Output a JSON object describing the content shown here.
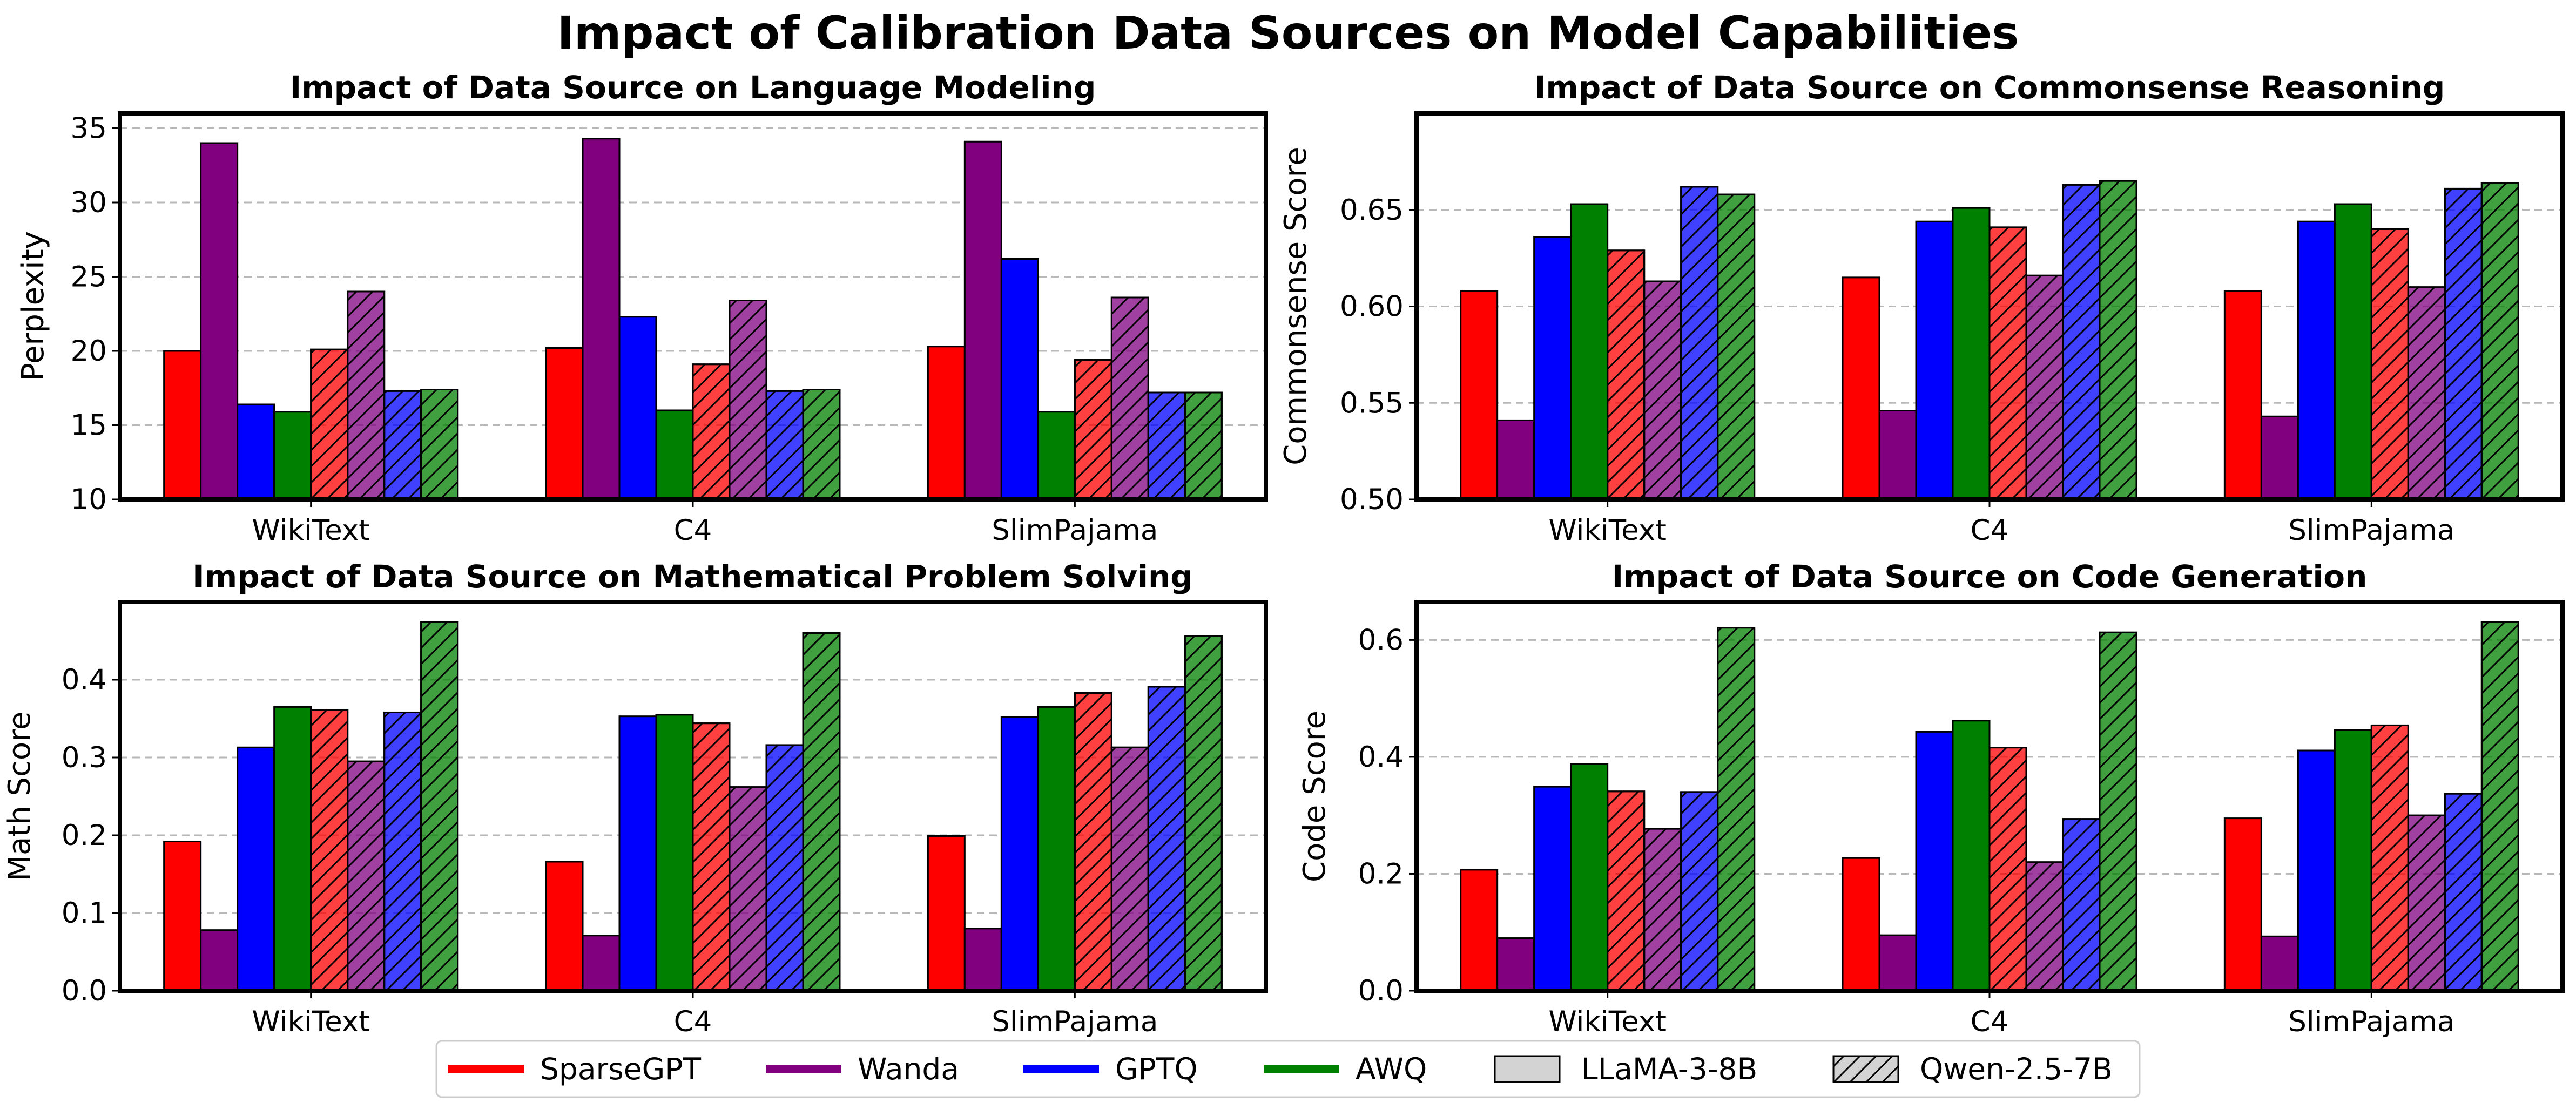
{
  "title": "Impact of Calibration Data Sources on Model Capabilities",
  "colors": {
    "SparseGPT": "#ff0000",
    "Wanda": "#800080",
    "GPTQ": "#0000ff",
    "AWQ": "#008000"
  },
  "legend": {
    "methods": [
      "SparseGPT",
      "Wanda",
      "GPTQ",
      "AWQ"
    ],
    "models": [
      "LLaMA-3-8B",
      "Qwen-2.5-7B"
    ]
  },
  "chart_data": [
    {
      "type": "bar",
      "title": "Impact of Data Source on Language Modeling",
      "ylabel": "Perplexity",
      "ylim": [
        10,
        36
      ],
      "yticks": [
        "10",
        "15",
        "20",
        "25",
        "30",
        "35"
      ],
      "categories": [
        "WikiText",
        "C4",
        "SlimPajama"
      ],
      "series": [
        {
          "name": "SparseGPT",
          "model": "LLaMA-3-8B",
          "values": [
            20.0,
            20.2,
            20.3
          ]
        },
        {
          "name": "Wanda",
          "model": "LLaMA-3-8B",
          "values": [
            34.0,
            34.3,
            34.1
          ]
        },
        {
          "name": "GPTQ",
          "model": "LLaMA-3-8B",
          "values": [
            16.4,
            22.3,
            26.2
          ]
        },
        {
          "name": "AWQ",
          "model": "LLaMA-3-8B",
          "values": [
            15.9,
            16.0,
            15.9
          ]
        },
        {
          "name": "SparseGPT",
          "model": "Qwen-2.5-7B",
          "values": [
            20.1,
            19.1,
            19.4
          ]
        },
        {
          "name": "Wanda",
          "model": "Qwen-2.5-7B",
          "values": [
            24.0,
            23.4,
            23.6
          ]
        },
        {
          "name": "GPTQ",
          "model": "Qwen-2.5-7B",
          "values": [
            17.3,
            17.3,
            17.2
          ]
        },
        {
          "name": "AWQ",
          "model": "Qwen-2.5-7B",
          "values": [
            17.4,
            17.4,
            17.2
          ]
        }
      ]
    },
    {
      "type": "bar",
      "title": "Impact of Data Source on Commonsense Reasoning",
      "ylabel": "Commonsense Score",
      "ylim": [
        0.5,
        0.7
      ],
      "yticks": [
        "0.50",
        "0.55",
        "0.60",
        "0.65"
      ],
      "categories": [
        "WikiText",
        "C4",
        "SlimPajama"
      ],
      "series": [
        {
          "name": "SparseGPT",
          "model": "LLaMA-3-8B",
          "values": [
            0.608,
            0.615,
            0.608
          ]
        },
        {
          "name": "Wanda",
          "model": "LLaMA-3-8B",
          "values": [
            0.541,
            0.546,
            0.543
          ]
        },
        {
          "name": "GPTQ",
          "model": "LLaMA-3-8B",
          "values": [
            0.636,
            0.644,
            0.644
          ]
        },
        {
          "name": "AWQ",
          "model": "LLaMA-3-8B",
          "values": [
            0.653,
            0.651,
            0.653
          ]
        },
        {
          "name": "SparseGPT",
          "model": "Qwen-2.5-7B",
          "values": [
            0.629,
            0.641,
            0.64
          ]
        },
        {
          "name": "Wanda",
          "model": "Qwen-2.5-7B",
          "values": [
            0.613,
            0.616,
            0.61
          ]
        },
        {
          "name": "GPTQ",
          "model": "Qwen-2.5-7B",
          "values": [
            0.662,
            0.663,
            0.661
          ]
        },
        {
          "name": "AWQ",
          "model": "Qwen-2.5-7B",
          "values": [
            0.658,
            0.665,
            0.664
          ]
        }
      ]
    },
    {
      "type": "bar",
      "title": "Impact of Data Source on Mathematical Problem Solving",
      "ylabel": "Math Score",
      "ylim": [
        0,
        0.5
      ],
      "yticks": [
        "0.0",
        "0.1",
        "0.2",
        "0.3",
        "0.4"
      ],
      "categories": [
        "WikiText",
        "C4",
        "SlimPajama"
      ],
      "series": [
        {
          "name": "SparseGPT",
          "model": "LLaMA-3-8B",
          "values": [
            0.192,
            0.166,
            0.199
          ]
        },
        {
          "name": "Wanda",
          "model": "LLaMA-3-8B",
          "values": [
            0.078,
            0.071,
            0.08
          ]
        },
        {
          "name": "GPTQ",
          "model": "LLaMA-3-8B",
          "values": [
            0.313,
            0.353,
            0.352
          ]
        },
        {
          "name": "AWQ",
          "model": "LLaMA-3-8B",
          "values": [
            0.365,
            0.355,
            0.365
          ]
        },
        {
          "name": "SparseGPT",
          "model": "Qwen-2.5-7B",
          "values": [
            0.361,
            0.344,
            0.383
          ]
        },
        {
          "name": "Wanda",
          "model": "Qwen-2.5-7B",
          "values": [
            0.295,
            0.262,
            0.313
          ]
        },
        {
          "name": "GPTQ",
          "model": "Qwen-2.5-7B",
          "values": [
            0.358,
            0.316,
            0.391
          ]
        },
        {
          "name": "AWQ",
          "model": "Qwen-2.5-7B",
          "values": [
            0.474,
            0.46,
            0.456
          ]
        }
      ]
    },
    {
      "type": "bar",
      "title": "Impact of Data Source on Code Generation",
      "ylabel": "Code Score",
      "ylim": [
        0,
        0.665
      ],
      "yticks": [
        "0.0",
        "0.2",
        "0.4",
        "0.6"
      ],
      "categories": [
        "WikiText",
        "C4",
        "SlimPajama"
      ],
      "series": [
        {
          "name": "SparseGPT",
          "model": "LLaMA-3-8B",
          "values": [
            0.207,
            0.227,
            0.295
          ]
        },
        {
          "name": "Wanda",
          "model": "LLaMA-3-8B",
          "values": [
            0.09,
            0.095,
            0.093
          ]
        },
        {
          "name": "GPTQ",
          "model": "LLaMA-3-8B",
          "values": [
            0.349,
            0.443,
            0.411
          ]
        },
        {
          "name": "AWQ",
          "model": "LLaMA-3-8B",
          "values": [
            0.388,
            0.462,
            0.446
          ]
        },
        {
          "name": "SparseGPT",
          "model": "Qwen-2.5-7B",
          "values": [
            0.341,
            0.416,
            0.454
          ]
        },
        {
          "name": "Wanda",
          "model": "Qwen-2.5-7B",
          "values": [
            0.277,
            0.22,
            0.3
          ]
        },
        {
          "name": "GPTQ",
          "model": "Qwen-2.5-7B",
          "values": [
            0.34,
            0.294,
            0.337
          ]
        },
        {
          "name": "AWQ",
          "model": "Qwen-2.5-7B",
          "values": [
            0.621,
            0.613,
            0.631
          ]
        }
      ]
    }
  ]
}
